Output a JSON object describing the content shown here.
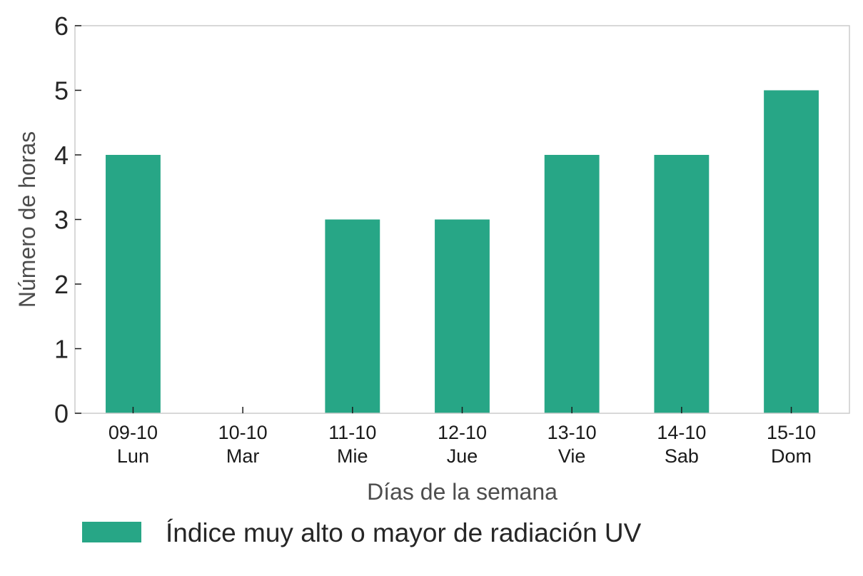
{
  "chart_data": {
    "type": "bar",
    "categories": [
      [
        "09-10",
        "Lun"
      ],
      [
        "10-10",
        "Mar"
      ],
      [
        "11-10",
        "Mie"
      ],
      [
        "12-10",
        "Jue"
      ],
      [
        "13-10",
        "Vie"
      ],
      [
        "14-10",
        "Sab"
      ],
      [
        "15-10",
        "Dom"
      ]
    ],
    "series": [
      {
        "name": "Índice muy alto o mayor de radiación UV",
        "values": [
          4,
          0,
          3,
          3,
          4,
          4,
          5
        ],
        "color": "#27a686"
      }
    ],
    "xlabel": "Días de la semana",
    "ylabel": "Número de horas",
    "ylim": [
      0,
      6
    ],
    "yticks": [
      0,
      1,
      2,
      3,
      4,
      5,
      6
    ],
    "grid": false,
    "legend_position": "bottom"
  }
}
